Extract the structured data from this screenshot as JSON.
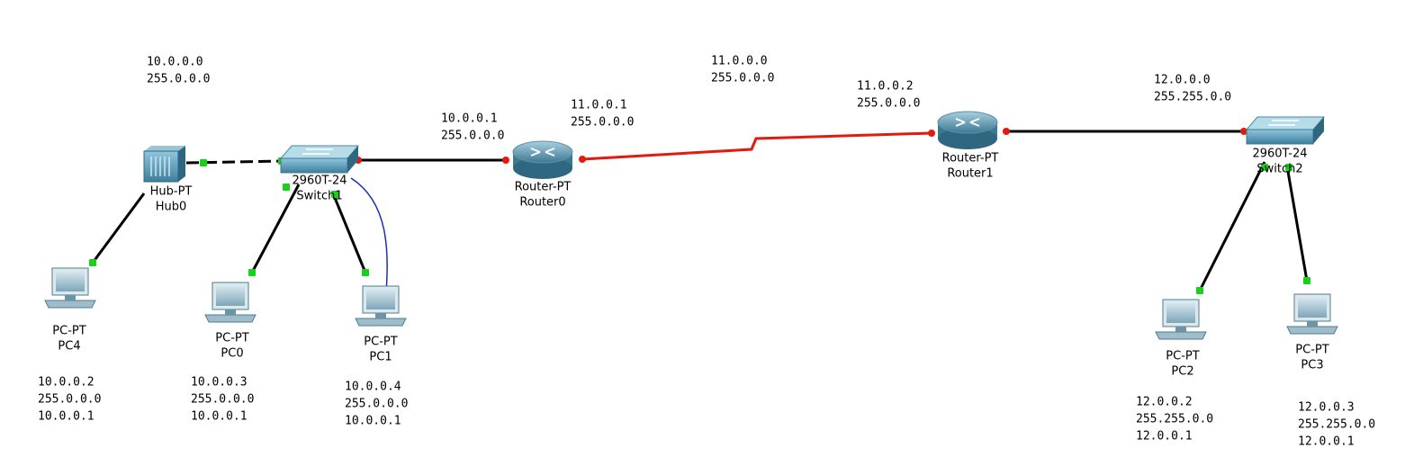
{
  "nodes": [
    {
      "model": "Hub-PT",
      "name": "Hub0"
    },
    {
      "model": "2960T-24",
      "name": "Switch1"
    },
    {
      "model": "Router-PT",
      "name": "Router0"
    },
    {
      "model": "Router-PT",
      "name": "Router1"
    },
    {
      "model": "2960T-24",
      "name": "Switch2"
    },
    {
      "model": "PC-PT",
      "name": "PC4"
    },
    {
      "model": "PC-PT",
      "name": "PC0"
    },
    {
      "model": "PC-PT",
      "name": "PC1"
    },
    {
      "model": "PC-PT",
      "name": "PC2"
    },
    {
      "model": "PC-PT",
      "name": "PC3"
    }
  ],
  "annotations": [
    [
      "10.0.0.0",
      "255.0.0.0"
    ],
    [
      "10.0.0.1",
      "255.0.0.0"
    ],
    [
      "11.0.0.1",
      "255.0.0.0"
    ],
    [
      "11.0.0.0",
      "255.0.0.0"
    ],
    [
      "11.0.0.2",
      "255.0.0.0"
    ],
    [
      "12.0.0.0",
      "255.255.0.0"
    ],
    [
      "10.0.0.2",
      "255.0.0.0",
      "10.0.0.1"
    ],
    [
      "10.0.0.3",
      "255.0.0.0",
      "10.0.0.1"
    ],
    [
      "10.0.0.4",
      "255.0.0.0",
      "10.0.0.1"
    ],
    [
      "12.0.0.2",
      "255.255.0.0",
      "12.0.0.1"
    ],
    [
      "12.0.0.3",
      "255.255.0.0",
      "12.0.0.1"
    ]
  ]
}
